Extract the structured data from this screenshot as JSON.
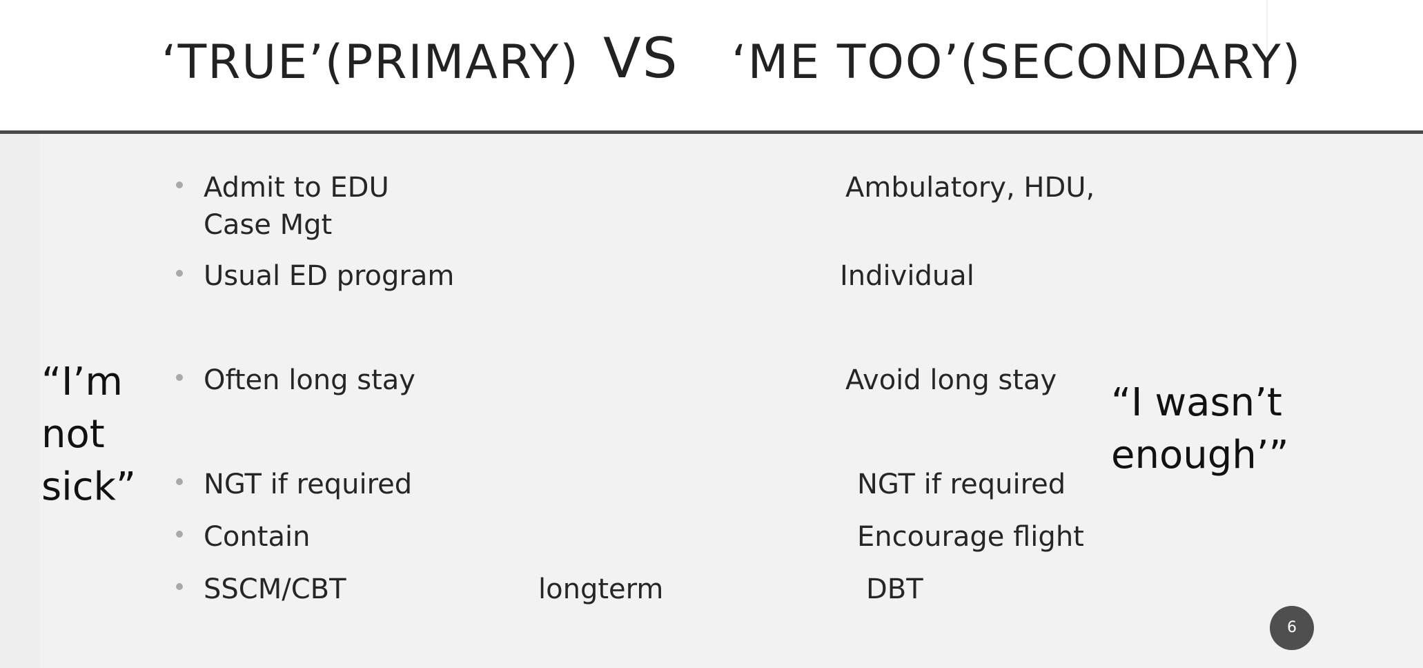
{
  "slide": {
    "title": {
      "left": "‘TRUE’(PRIMARY)",
      "vs": "VS",
      "right": "‘ME TOO’(SECONDARY)"
    },
    "quotes": {
      "left_lines": [
        "“I’m",
        "not",
        "sick”"
      ],
      "right_lines": [
        "“I wasn’t",
        "enough’”"
      ]
    },
    "rows": [
      {
        "left": [
          "Admit to EDU",
          "Case Mgt"
        ],
        "middle": "",
        "right": "Ambulatory, HDU,"
      },
      {
        "left": [
          "Usual ED program"
        ],
        "middle": "",
        "right": "Individual"
      },
      {
        "left": [
          "Often long stay"
        ],
        "middle": "",
        "right": "Avoid long stay"
      },
      {
        "left": [
          "NGT if required"
        ],
        "middle": "",
        "right": "NGT if required"
      },
      {
        "left": [
          "Contain"
        ],
        "middle": "",
        "right": "Encourage flight"
      },
      {
        "left": [
          "SSCM/CBT"
        ],
        "middle": "longterm",
        "right": "DBT"
      }
    ],
    "page_number": "6"
  }
}
